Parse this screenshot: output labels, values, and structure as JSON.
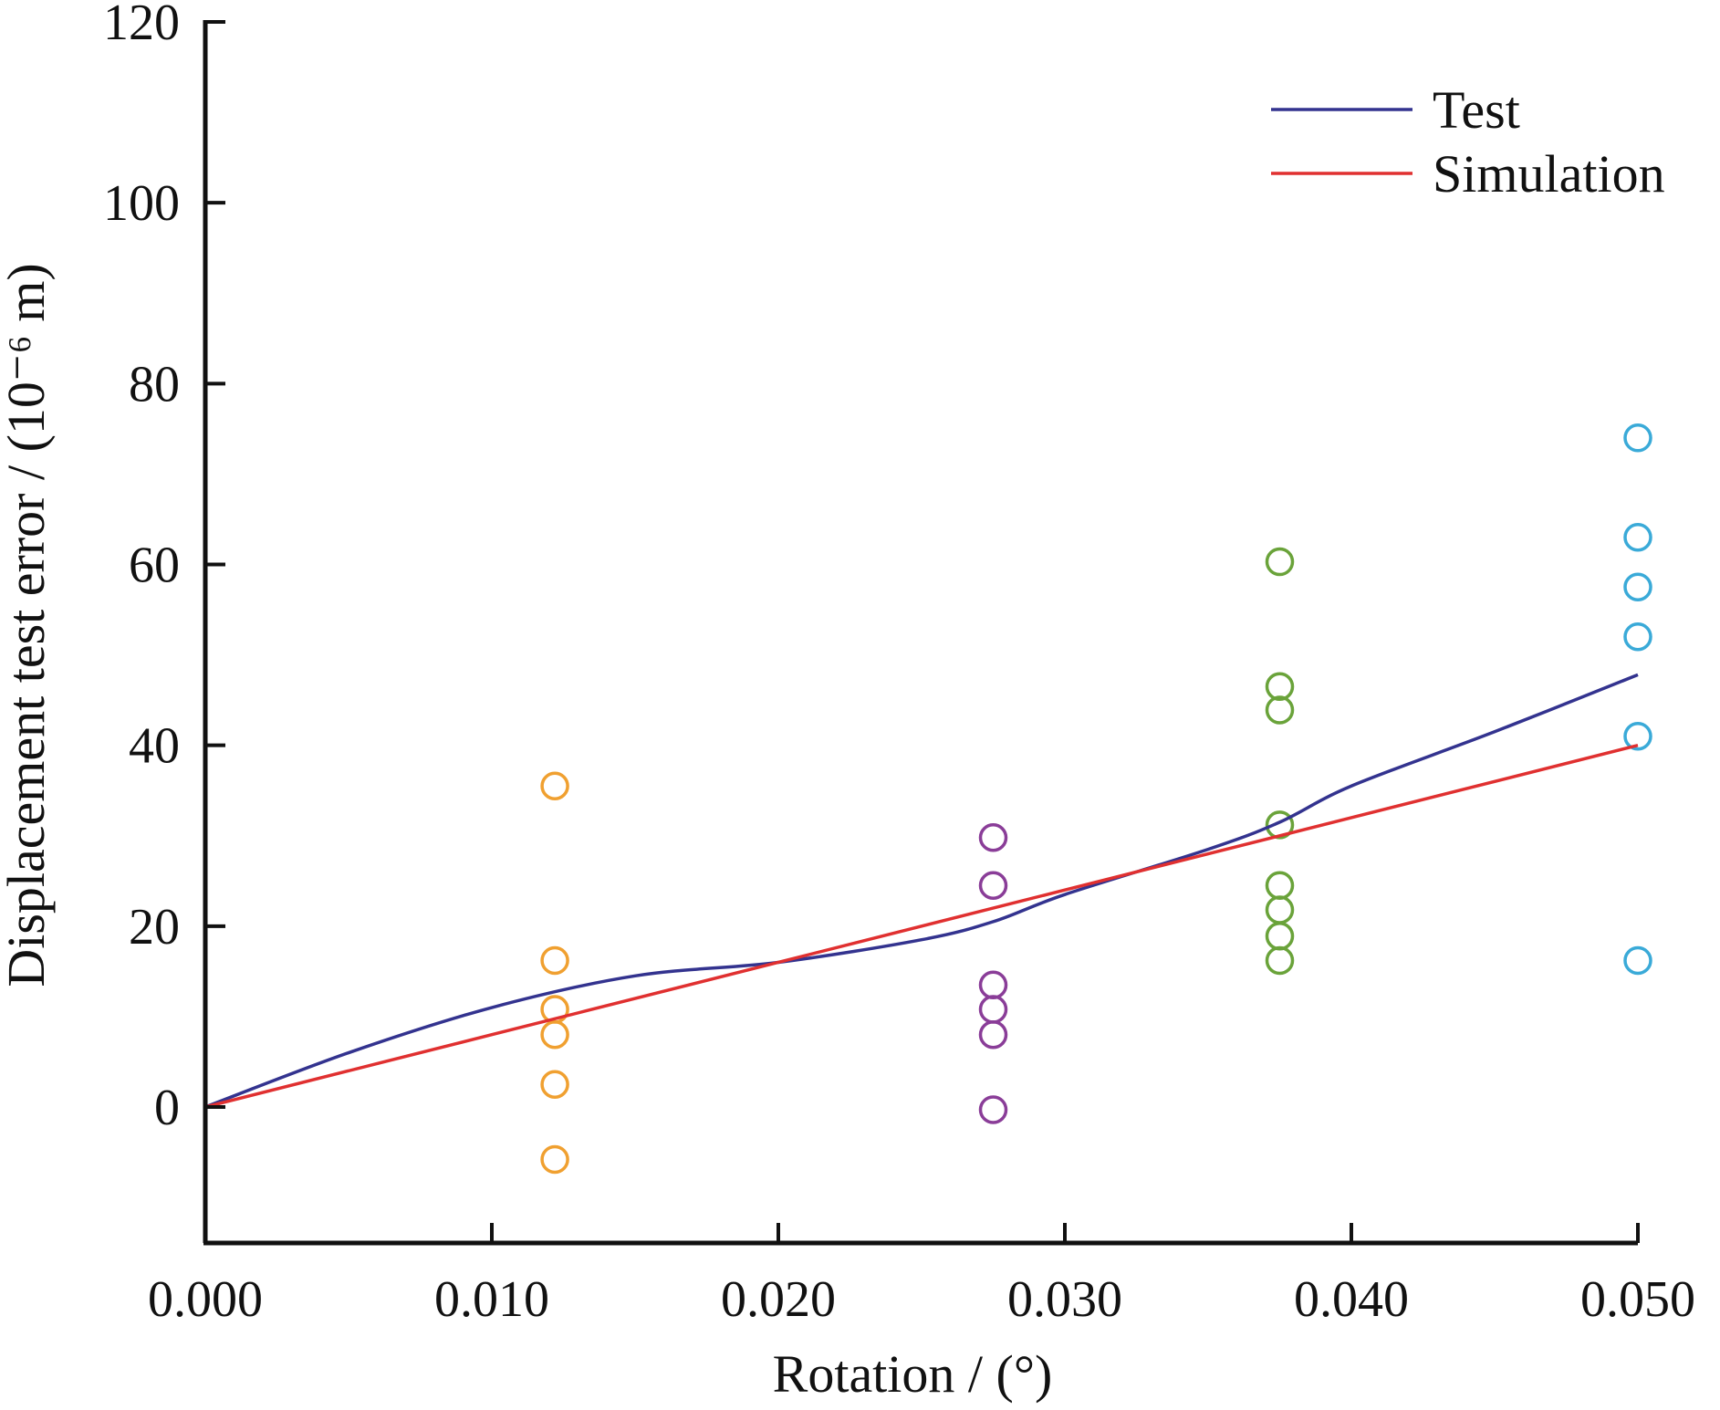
{
  "chart_data": {
    "type": "scatter",
    "xlabel": "Rotation / (°)",
    "ylabel": "Displacement test error / (10⁻⁶ m)",
    "xlim": [
      0.0,
      0.05
    ],
    "ylim": [
      -14,
      120
    ],
    "x_ticks": [
      0.0,
      0.01,
      0.02,
      0.03,
      0.04,
      0.05
    ],
    "x_tick_labels": [
      "0.000",
      "0.010",
      "0.020",
      "0.030",
      "0.040",
      "0.050"
    ],
    "y_ticks": [
      0,
      20,
      40,
      60,
      80,
      100,
      120
    ],
    "y_tick_labels": [
      "0",
      "20",
      "40",
      "60",
      "80",
      "100",
      "120"
    ],
    "grid": false,
    "legend_position": "top-right",
    "point_groups": [
      {
        "x": 0.0122,
        "color": "#f0a030",
        "y": [
          35.5,
          16.2,
          10.8,
          8.0,
          2.5,
          -5.8
        ]
      },
      {
        "x": 0.0275,
        "color": "#8a3d98",
        "y": [
          29.8,
          24.5,
          13.5,
          10.8,
          8.0,
          -0.3
        ]
      },
      {
        "x": 0.0375,
        "color": "#6aa33a",
        "y": [
          60.3,
          46.5,
          43.9,
          31.2,
          24.5,
          21.8,
          18.9,
          16.2
        ]
      },
      {
        "x": 0.05,
        "color": "#3aaad8",
        "y": [
          74.0,
          63.0,
          57.5,
          52.0,
          41.0,
          16.2
        ]
      }
    ],
    "series": [
      {
        "name": "Test",
        "color": "#33338f",
        "x": [
          0.0,
          0.005,
          0.01,
          0.015,
          0.02,
          0.025,
          0.0275,
          0.03,
          0.035,
          0.0375,
          0.04,
          0.045,
          0.05
        ],
        "y": [
          0.0,
          6.0,
          11.0,
          14.5,
          16.0,
          18.5,
          20.5,
          23.5,
          28.5,
          31.5,
          35.5,
          41.5,
          47.8
        ]
      },
      {
        "name": "Simulation",
        "color": "#e03030",
        "x": [
          0.0,
          0.01,
          0.02,
          0.03,
          0.04,
          0.05
        ],
        "y": [
          0.0,
          8.0,
          16.0,
          24.0,
          32.0,
          40.0
        ]
      }
    ]
  }
}
